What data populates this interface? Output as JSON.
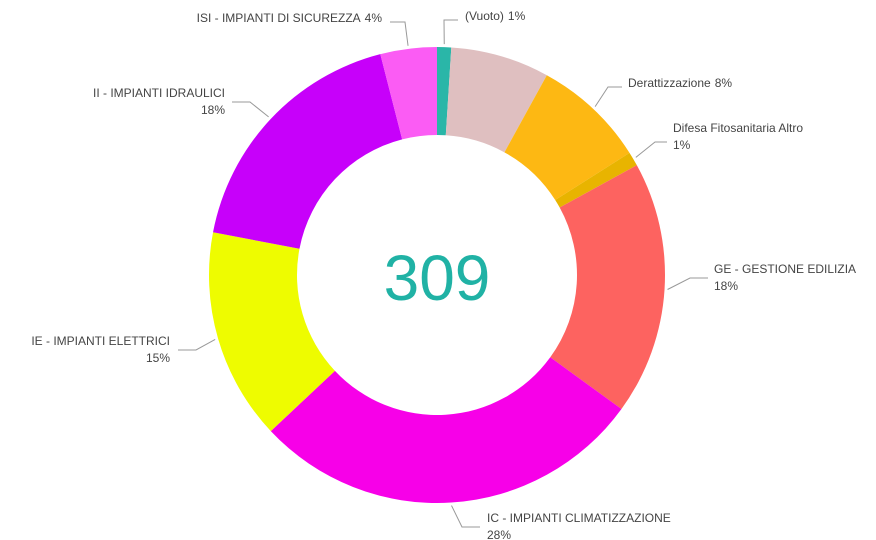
{
  "chart_data": {
    "type": "donut",
    "center_label": "309",
    "categories": [
      "(Vuoto)",
      null,
      "Derattizzazione",
      "Difesa Fitosanitaria Altro",
      "GE - GESTIONE EDILIZIA",
      "IC - IMPIANTI CLIMATIZZAZIONE",
      "IE - IMPIANTI ELETTRICI",
      "II - IMPIANTI IDRAULICI",
      "ISI - IMPIANTI DI SICUREZZA"
    ],
    "values": [
      1,
      7,
      8,
      1,
      18,
      28,
      15,
      18,
      4
    ],
    "value_labels": [
      "1%",
      null,
      "8%",
      "1%",
      "18%",
      "28%",
      "15%",
      "18%",
      "4%"
    ],
    "colors": [
      "#2ab6a8",
      "#dfbfc0",
      "#fdb813",
      "#e8b400",
      "#fd6360",
      "#f700e8",
      "#eefc00",
      "#c700fa",
      "#fb5cf4"
    ]
  }
}
